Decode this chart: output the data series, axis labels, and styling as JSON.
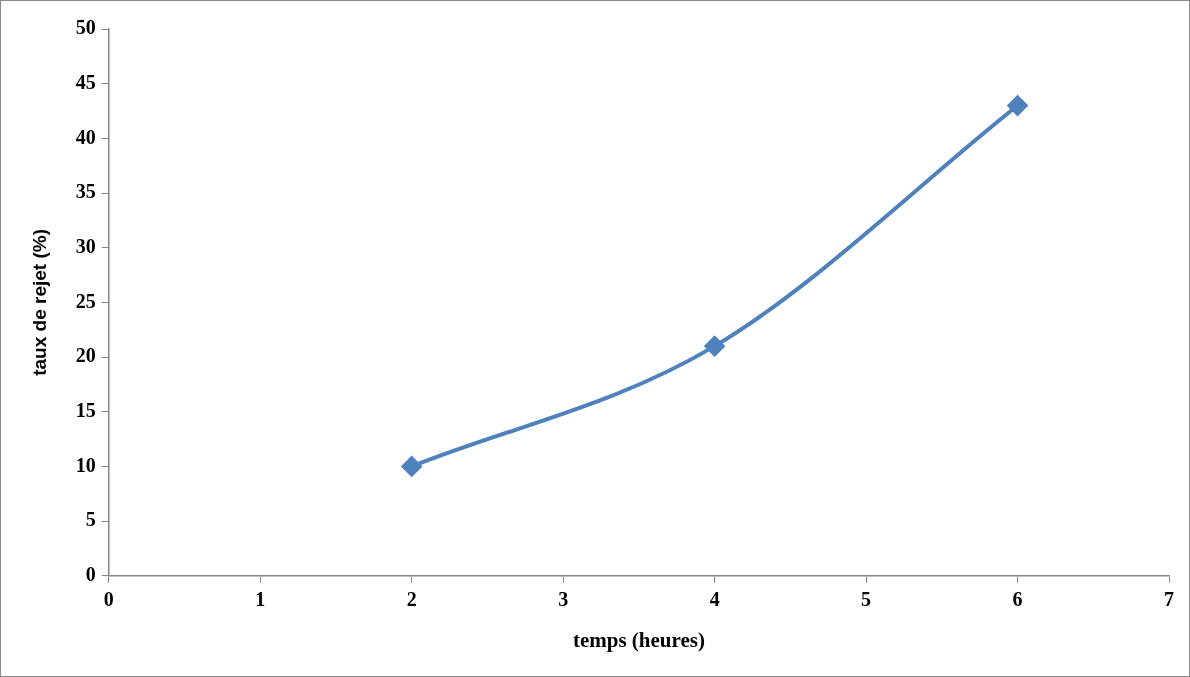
{
  "chart_data": {
    "type": "line",
    "xlabel": "temps (heures)",
    "ylabel": "taux de rejet (%)",
    "x": [
      2,
      4,
      6
    ],
    "series": [
      {
        "color": "#4f81bd",
        "values": [
          10,
          21,
          43
        ]
      }
    ],
    "xlim": [
      0,
      7
    ],
    "xticks": [
      0,
      1,
      2,
      3,
      4,
      5,
      6,
      7
    ],
    "ylim": [
      0,
      50
    ],
    "yticks": [
      0,
      5,
      10,
      15,
      20,
      25,
      30,
      35,
      40,
      45,
      50
    ],
    "marker": "diamond"
  }
}
